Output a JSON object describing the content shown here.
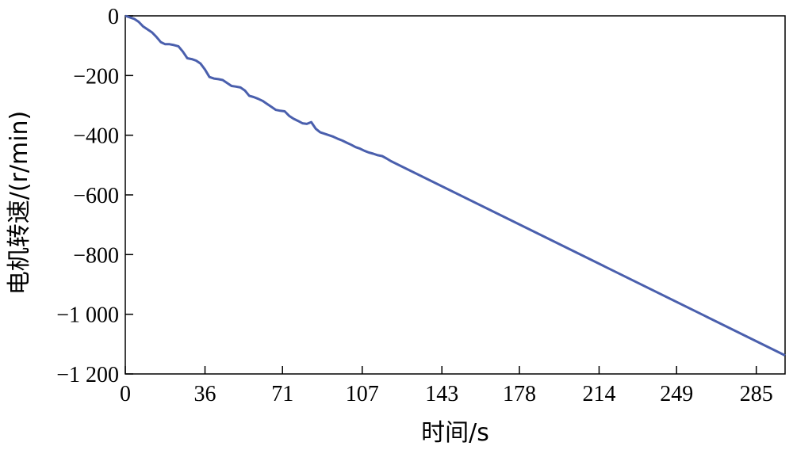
{
  "chart_data": {
    "type": "line",
    "xlabel": "时间/s",
    "ylabel": "电机转速/(r/min)",
    "xlim": [
      0,
      298
    ],
    "ylim": [
      -1200,
      0
    ],
    "x_ticks": [
      {
        "value": 0,
        "label": "0"
      },
      {
        "value": 36,
        "label": "36"
      },
      {
        "value": 71,
        "label": "71"
      },
      {
        "value": 107,
        "label": "107"
      },
      {
        "value": 143,
        "label": "143"
      },
      {
        "value": 178,
        "label": "178"
      },
      {
        "value": 214,
        "label": "214"
      },
      {
        "value": 249,
        "label": "249"
      },
      {
        "value": 285,
        "label": "285"
      }
    ],
    "y_ticks": [
      {
        "value": 0,
        "label": "0"
      },
      {
        "value": -200,
        "label": "−200"
      },
      {
        "value": -400,
        "label": "−400"
      },
      {
        "value": -600,
        "label": "−600"
      },
      {
        "value": -800,
        "label": "−800"
      },
      {
        "value": -1000,
        "label": "−1 000"
      },
      {
        "value": -1200,
        "label": "−1 200"
      }
    ],
    "grid": false,
    "colors": {
      "line": "#4a5fad",
      "axis": "#000000"
    },
    "series": [
      {
        "x": [
          0,
          4,
          6,
          8,
          10,
          12,
          14,
          16,
          18,
          20,
          22,
          24,
          26,
          28,
          30,
          32,
          34,
          36,
          38,
          40,
          42,
          44,
          46,
          48,
          50,
          52,
          54,
          56,
          58,
          60,
          62,
          64,
          66,
          68,
          70,
          72,
          74,
          76,
          78,
          80,
          82,
          84,
          86,
          88,
          90,
          92,
          94,
          96,
          98,
          100,
          102,
          104,
          106,
          108,
          110,
          112,
          114,
          116,
          118,
          120,
          298
        ],
        "y": [
          0,
          -10,
          -20,
          -35,
          -45,
          -55,
          -70,
          -88,
          -95,
          -95,
          -98,
          -102,
          -120,
          -142,
          -145,
          -150,
          -160,
          -180,
          -205,
          -210,
          -212,
          -215,
          -225,
          -235,
          -237,
          -240,
          -250,
          -268,
          -272,
          -278,
          -285,
          -295,
          -305,
          -315,
          -318,
          -320,
          -335,
          -345,
          -352,
          -360,
          -362,
          -356,
          -378,
          -390,
          -395,
          -400,
          -405,
          -412,
          -418,
          -425,
          -432,
          -440,
          -445,
          -452,
          -458,
          -462,
          -467,
          -470,
          -478,
          -487,
          -1138
        ]
      }
    ]
  }
}
